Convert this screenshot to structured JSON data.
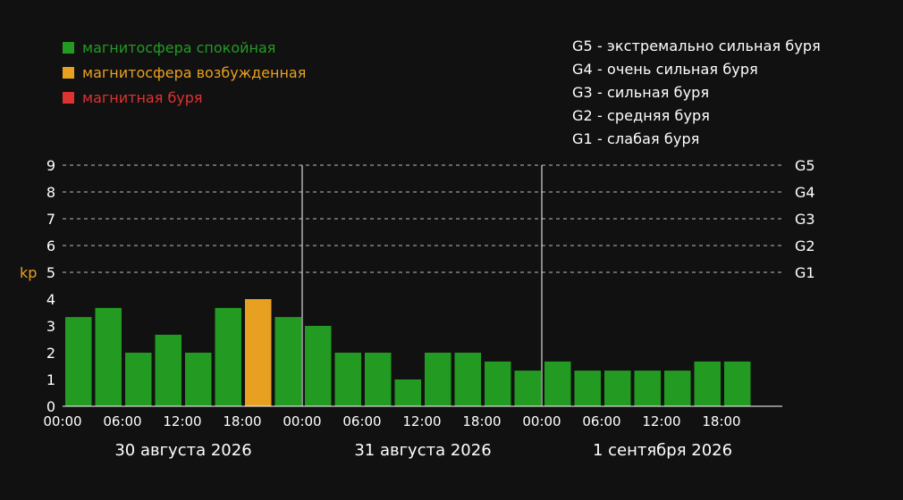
{
  "legend": [
    {
      "label": "магнитосфера спокойная",
      "color": "#239b23"
    },
    {
      "label": "магнитосфера возбужденная",
      "color": "#e8a020"
    },
    {
      "label": "магнитная буря",
      "color": "#dd3333"
    }
  ],
  "storm_scale": [
    "G5 - экстремально сильная буря",
    "G4 - очень сильная буря",
    "G3 - сильная буря",
    "G2 - средняя буря",
    "G1 - слабая буря"
  ],
  "colors": {
    "background": "#111111",
    "axis": "#ffffff",
    "kp_label": "#e8a020"
  },
  "chart_data": {
    "type": "bar",
    "ylabel": "kp",
    "ylim": [
      0,
      9
    ],
    "yticks": [
      0,
      1,
      2,
      3,
      4,
      5,
      6,
      7,
      8,
      9
    ],
    "grid": "dashed horizontal at 5-9",
    "g_levels": [
      {
        "label": "G5",
        "value": 9
      },
      {
        "label": "G4",
        "value": 8
      },
      {
        "label": "G3",
        "value": 7
      },
      {
        "label": "G2",
        "value": 6
      },
      {
        "label": "G1",
        "value": 5
      }
    ],
    "x_tick_labels": [
      "00:00",
      "06:00",
      "12:00",
      "18:00"
    ],
    "days": [
      {
        "label": "30 августа 2026",
        "values": [
          3.33,
          3.67,
          2,
          2.67,
          2,
          3.67,
          4,
          3.33
        ],
        "status": [
          "quiet",
          "quiet",
          "quiet",
          "quiet",
          "quiet",
          "quiet",
          "active",
          "quiet"
        ]
      },
      {
        "label": "31 августа 2026",
        "values": [
          3,
          2,
          2,
          1,
          2,
          2,
          1.67,
          1.33
        ],
        "status": [
          "quiet",
          "quiet",
          "quiet",
          "quiet",
          "quiet",
          "quiet",
          "quiet",
          "quiet"
        ]
      },
      {
        "label": "1 сентября 2026",
        "values": [
          1.67,
          1.33,
          1.33,
          1.33,
          1.33,
          1.67,
          1.67
        ],
        "status": [
          "quiet",
          "quiet",
          "quiet",
          "quiet",
          "quiet",
          "quiet",
          "quiet"
        ]
      }
    ],
    "status_colors": {
      "quiet": "#239b23",
      "active": "#e8a020",
      "storm": "#dd3333"
    }
  }
}
